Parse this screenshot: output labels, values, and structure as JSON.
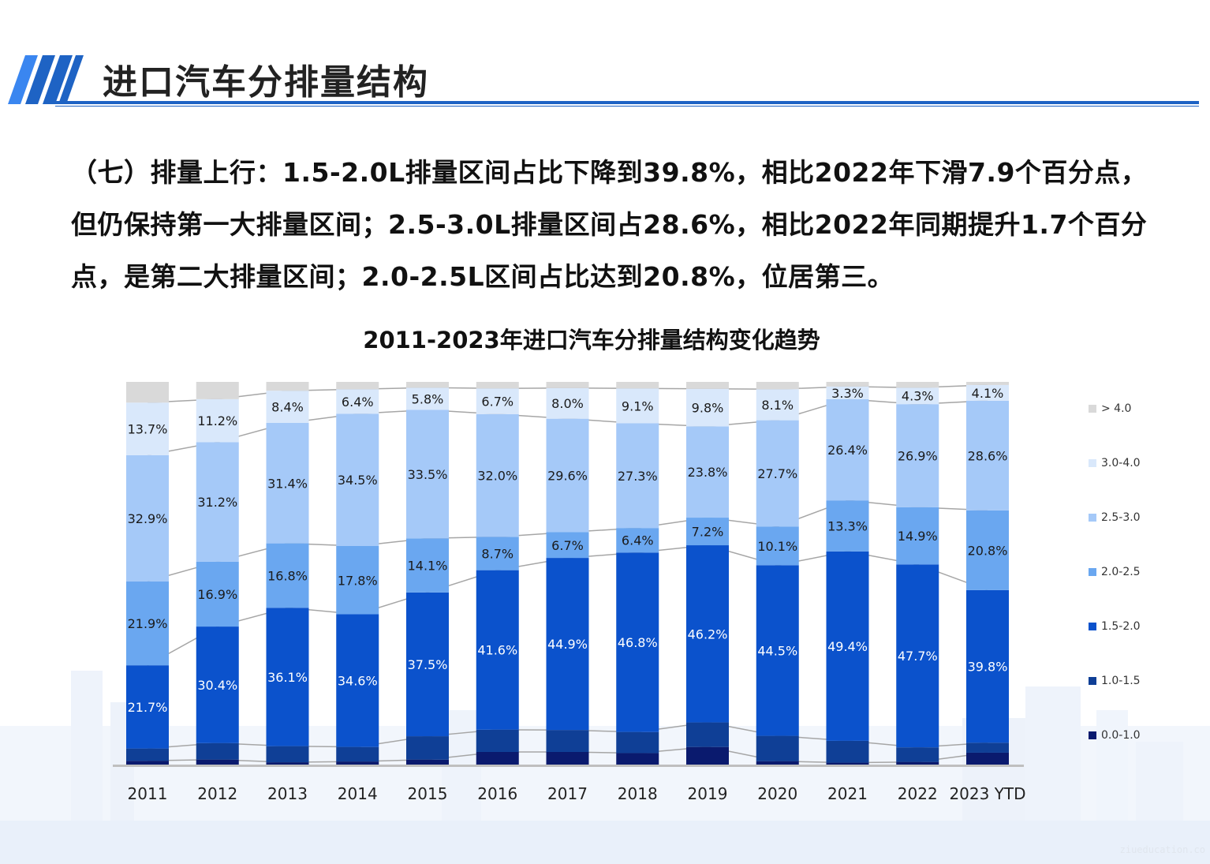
{
  "page": {
    "title": "进口汽车分排量结构",
    "summary": "（七）排量上行：1.5-2.0L排量区间占比下降到39.8%，相比2022年下滑7.9个百分点，但仍保持第一大排量区间；2.5-3.0L排量区间占28.6%，相比2022年同期提升1.7个百分点，是第二大排量区间；2.0-2.5L区间占比达到20.8%，位居第三。",
    "watermark": "ziueducation.co"
  },
  "colors": {
    "accent": "#1e63c4",
    "series": [
      "#0a1a6e",
      "#0f3f96",
      "#0b52cc",
      "#6aa7f0",
      "#a5c9f8",
      "#d9e8fb",
      "#d9d9d9"
    ]
  },
  "chart_data": {
    "type": "bar",
    "stacked": true,
    "normalized": true,
    "title": "2011-2023年进口汽车分排量结构变化趋势",
    "categories": [
      "2011",
      "2012",
      "2013",
      "2014",
      "2015",
      "2016",
      "2017",
      "2018",
      "2019",
      "2020",
      "2021",
      "2022",
      "2023 YTD"
    ],
    "series": [
      {
        "name": "0.0-1.0",
        "values": [
          1.2,
          1.5,
          0.8,
          1.0,
          1.5,
          3.5,
          3.5,
          3.2,
          4.8,
          1.1,
          0.7,
          0.9,
          3.3
        ]
      },
      {
        "name": "1.0-1.5",
        "values": [
          3.2,
          4.3,
          4.2,
          3.8,
          6.1,
          5.8,
          5.7,
          5.5,
          6.4,
          6.6,
          5.7,
          3.8,
          2.6
        ]
      },
      {
        "name": "1.5-2.0",
        "values": [
          21.7,
          30.4,
          36.1,
          34.6,
          37.5,
          41.6,
          44.9,
          46.8,
          46.2,
          44.5,
          49.4,
          47.7,
          39.8
        ]
      },
      {
        "name": "2.0-2.5",
        "values": [
          21.9,
          16.9,
          16.8,
          17.8,
          14.1,
          8.7,
          6.7,
          6.4,
          7.2,
          10.1,
          13.3,
          14.9,
          20.8
        ]
      },
      {
        "name": "2.5-3.0",
        "values": [
          32.9,
          31.2,
          31.4,
          34.5,
          33.5,
          32.0,
          29.6,
          27.3,
          23.8,
          27.7,
          26.4,
          26.9,
          28.6
        ]
      },
      {
        "name": "3.0-4.0",
        "values": [
          13.7,
          11.2,
          8.4,
          6.4,
          5.8,
          6.7,
          8.0,
          9.1,
          9.8,
          8.1,
          3.3,
          4.3,
          4.1
        ]
      },
      {
        "name": "> 4.0",
        "values": [
          5.4,
          4.5,
          2.3,
          1.9,
          1.5,
          1.7,
          1.6,
          1.7,
          1.8,
          1.9,
          1.2,
          1.5,
          0.8
        ]
      }
    ],
    "labeled_series": [
      "1.5-2.0",
      "2.0-2.5",
      "2.5-3.0",
      "3.0-4.0"
    ],
    "ylim": [
      0,
      100
    ],
    "xlabel": "",
    "ylabel": "",
    "grid": false,
    "legend_position": "right"
  }
}
